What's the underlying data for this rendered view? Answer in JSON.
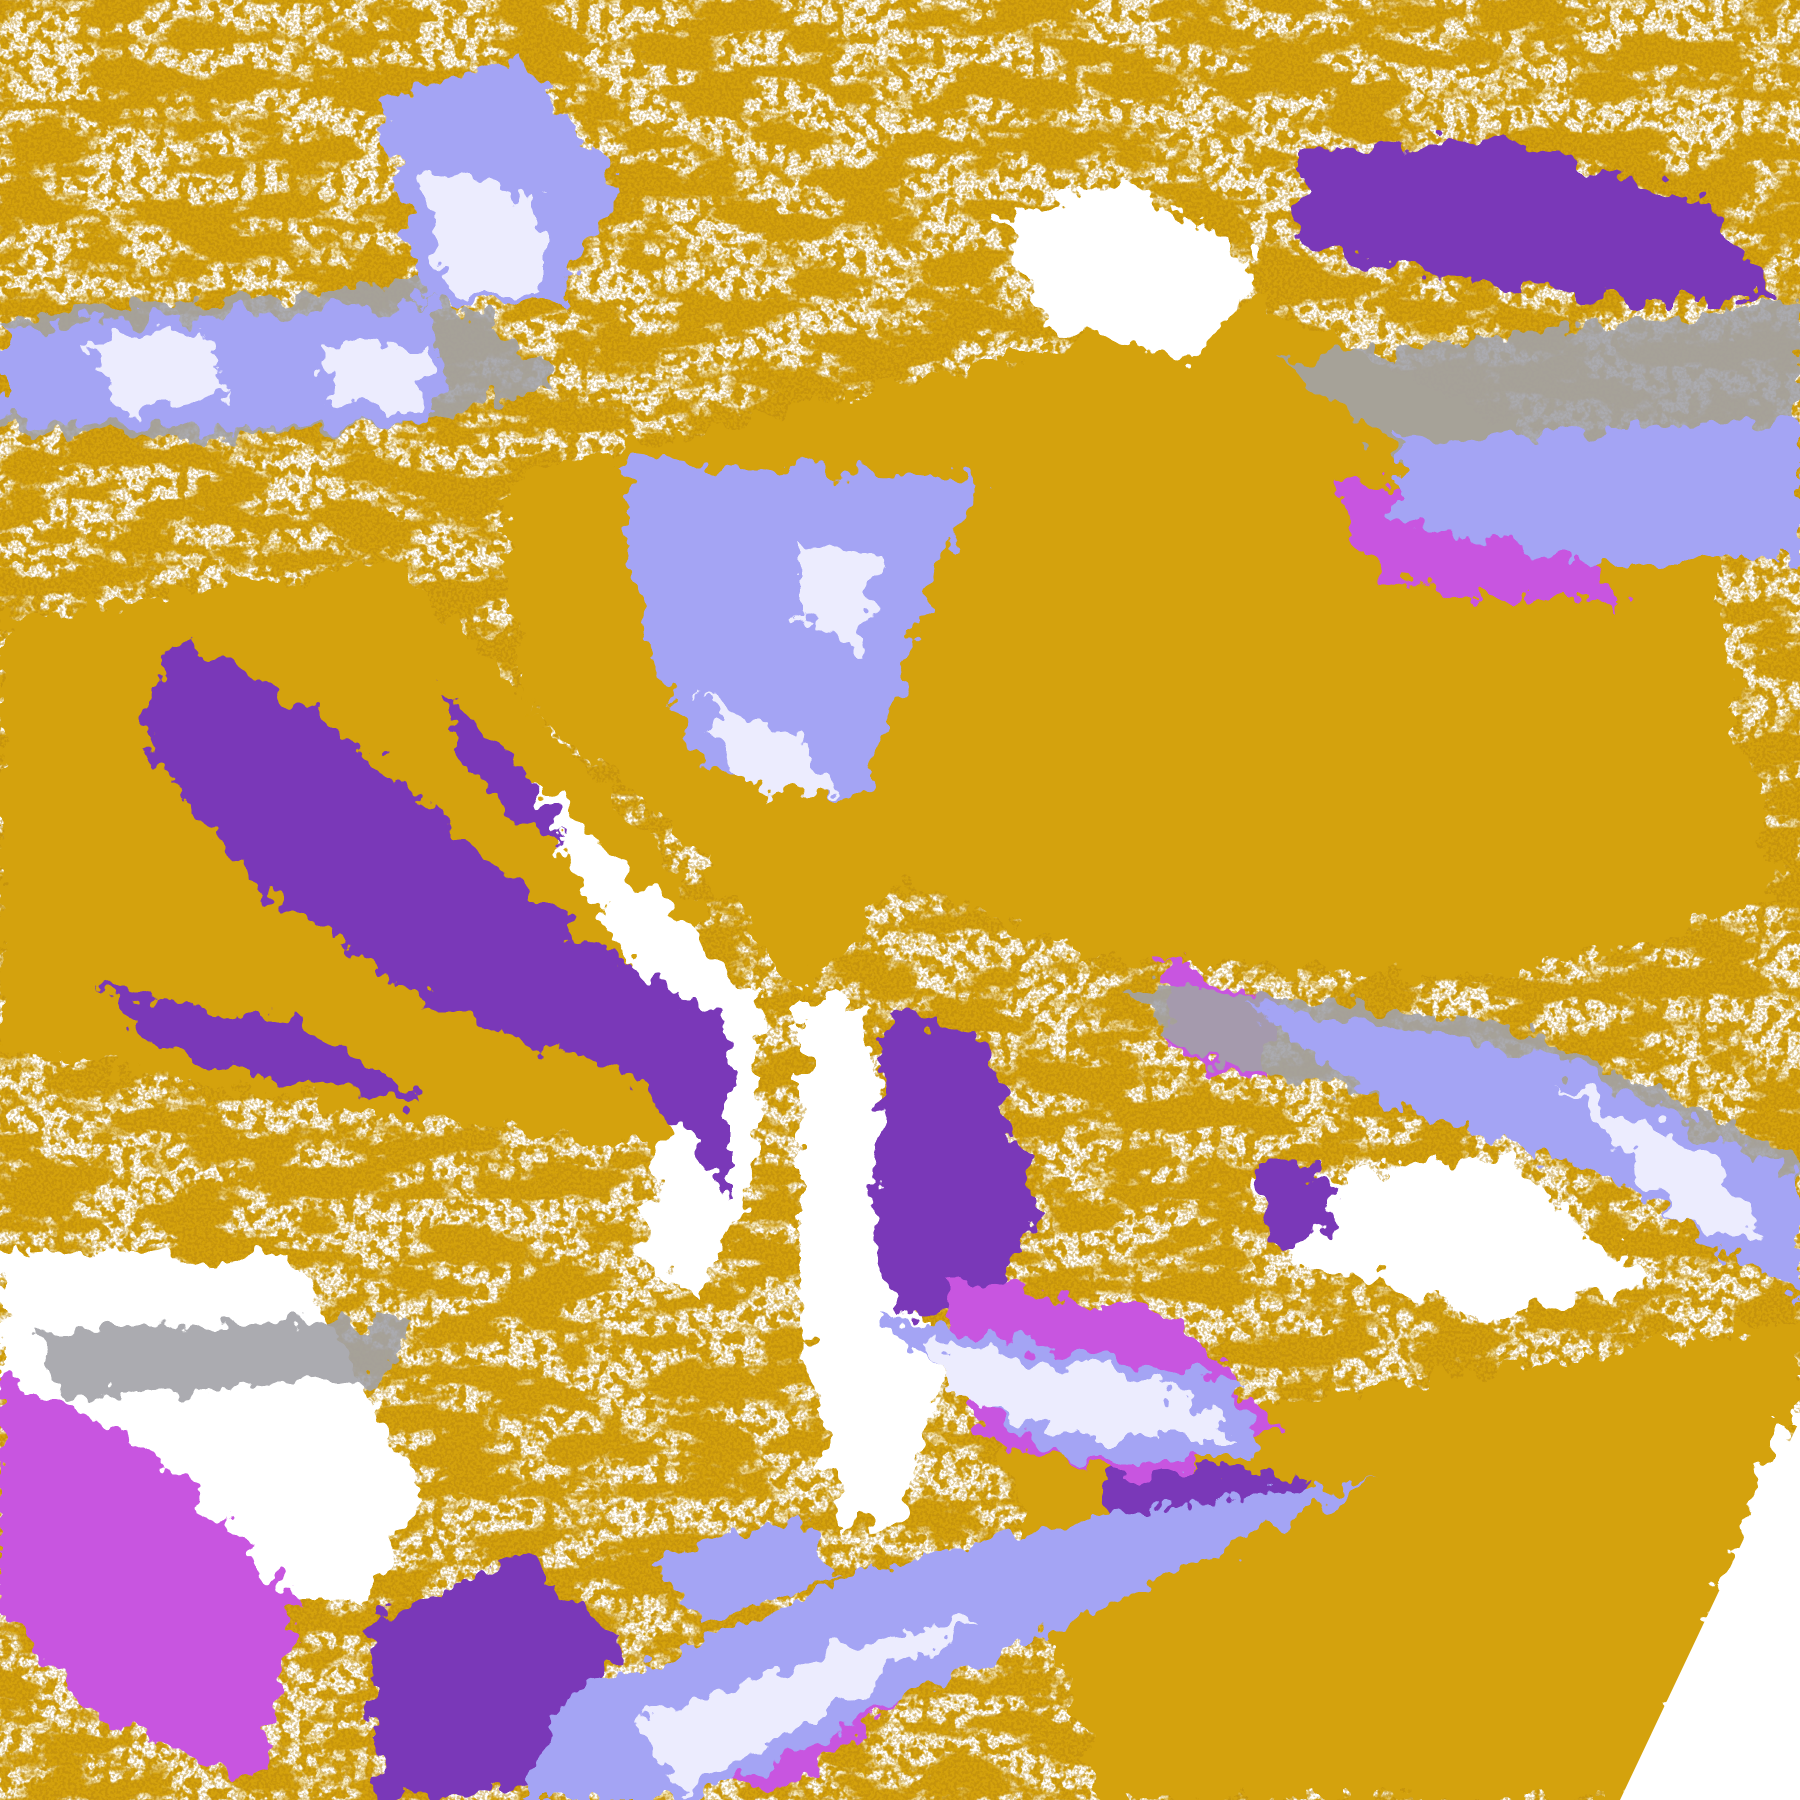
{
  "image": {
    "kind": "satellite-cloud-classification",
    "palette": {
      "background": "#ffffff",
      "gold": "#d4a20e",
      "gold_dark": "#b8860b",
      "purple": "#7a38b8",
      "magenta": "#c855e0",
      "lavender": "#a4a4f4",
      "pale": "#ececfe",
      "gray": "#a2a2a8"
    },
    "corner_cut_icon": "no-data-triangle"
  }
}
